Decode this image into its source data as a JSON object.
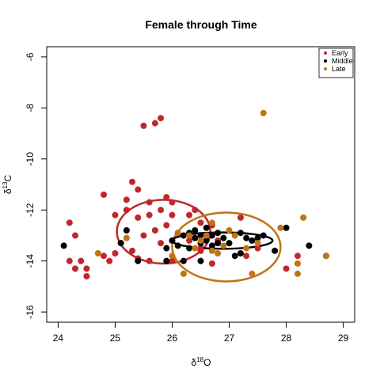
{
  "chart_data": {
    "type": "scatter",
    "title": "Female through Time",
    "xlabel": "δ18O",
    "xlabel_parts": {
      "delta": "δ",
      "sup": "18",
      "base": "O"
    },
    "ylabel": "δ13C",
    "ylabel_parts": {
      "delta": "δ",
      "sup": "13",
      "base": "C"
    },
    "xlim": [
      23.8,
      29.2
    ],
    "ylim": [
      -16.4,
      -5.6
    ],
    "xticks": [
      24,
      25,
      26,
      27,
      28,
      29
    ],
    "yticks": [
      -16,
      -14,
      -12,
      -10,
      -8,
      -6
    ],
    "grid": false,
    "legend_position": "top-right",
    "series": [
      {
        "name": "Early",
        "color": "#C0272D",
        "points": [
          [
            24.2,
            -12.5
          ],
          [
            24.3,
            -13.0
          ],
          [
            24.2,
            -14.0
          ],
          [
            24.3,
            -14.3
          ],
          [
            24.4,
            -14.0
          ],
          [
            24.5,
            -14.3
          ],
          [
            24.5,
            -14.6
          ],
          [
            24.8,
            -11.4
          ],
          [
            24.8,
            -13.8
          ],
          [
            24.9,
            -14.0
          ],
          [
            25.0,
            -12.2
          ],
          [
            25.0,
            -13.7
          ],
          [
            25.1,
            -13.3
          ],
          [
            25.2,
            -12.0
          ],
          [
            25.2,
            -11.6
          ],
          [
            25.3,
            -10.9
          ],
          [
            25.3,
            -13.6
          ],
          [
            25.4,
            -11.2
          ],
          [
            25.4,
            -12.3
          ],
          [
            25.5,
            -13.0
          ],
          [
            25.5,
            -8.7
          ],
          [
            25.7,
            -8.6
          ],
          [
            25.8,
            -8.4
          ],
          [
            25.6,
            -11.7
          ],
          [
            25.6,
            -12.2
          ],
          [
            25.7,
            -12.8
          ],
          [
            25.8,
            -12.0
          ],
          [
            25.9,
            -11.5
          ],
          [
            25.9,
            -12.6
          ],
          [
            26.0,
            -11.7
          ],
          [
            26.0,
            -12.2
          ],
          [
            26.1,
            -12.9
          ],
          [
            26.2,
            -13.0
          ],
          [
            26.3,
            -12.2
          ],
          [
            26.3,
            -13.2
          ],
          [
            26.4,
            -12.0
          ],
          [
            26.5,
            -12.5
          ],
          [
            26.5,
            -13.5
          ],
          [
            26.6,
            -13.0
          ],
          [
            26.7,
            -12.6
          ],
          [
            26.8,
            -13.2
          ],
          [
            26.7,
            -14.1
          ],
          [
            26.5,
            -13.6
          ],
          [
            27.2,
            -12.3
          ],
          [
            27.3,
            -13.8
          ],
          [
            27.5,
            -13.5
          ],
          [
            26.0,
            -14.0
          ],
          [
            25.8,
            -13.3
          ],
          [
            25.6,
            -14.0
          ],
          [
            25.4,
            -13.9
          ],
          [
            28.0,
            -14.3
          ],
          [
            28.2,
            -13.8
          ]
        ]
      },
      {
        "name": "Middle",
        "color": "#000000",
        "points": [
          [
            24.1,
            -13.4
          ],
          [
            25.1,
            -13.3
          ],
          [
            25.2,
            -12.8
          ],
          [
            25.4,
            -14.0
          ],
          [
            25.9,
            -13.5
          ],
          [
            25.9,
            -14.0
          ],
          [
            26.0,
            -13.2
          ],
          [
            26.1,
            -13.4
          ],
          [
            26.2,
            -13.0
          ],
          [
            26.3,
            -12.9
          ],
          [
            26.3,
            -13.5
          ],
          [
            26.4,
            -13.1
          ],
          [
            26.4,
            -12.8
          ],
          [
            26.5,
            -13.0
          ],
          [
            26.5,
            -13.3
          ],
          [
            26.6,
            -12.7
          ],
          [
            26.6,
            -13.2
          ],
          [
            26.7,
            -13.0
          ],
          [
            26.7,
            -13.4
          ],
          [
            26.8,
            -12.9
          ],
          [
            26.8,
            -13.3
          ],
          [
            26.9,
            -13.1
          ],
          [
            27.0,
            -13.3
          ],
          [
            27.1,
            -13.8
          ],
          [
            27.2,
            -13.7
          ],
          [
            27.2,
            -12.9
          ],
          [
            27.3,
            -13.1
          ],
          [
            27.4,
            -13.2
          ],
          [
            27.5,
            -13.1
          ],
          [
            27.6,
            -13.0
          ],
          [
            27.8,
            -13.6
          ],
          [
            28.0,
            -12.7
          ],
          [
            28.4,
            -13.4
          ],
          [
            28.7,
            -13.8
          ],
          [
            26.5,
            -14.0
          ],
          [
            26.2,
            -14.0
          ]
        ]
      },
      {
        "name": "Late",
        "color": "#C07515",
        "points": [
          [
            24.7,
            -13.7
          ],
          [
            25.2,
            -13.1
          ],
          [
            26.0,
            -13.8
          ],
          [
            26.1,
            -12.9
          ],
          [
            26.2,
            -14.5
          ],
          [
            26.4,
            -13.5
          ],
          [
            26.5,
            -13.2
          ],
          [
            26.6,
            -13.0
          ],
          [
            26.7,
            -13.6
          ],
          [
            26.7,
            -12.5
          ],
          [
            26.8,
            -13.7
          ],
          [
            26.9,
            -13.4
          ],
          [
            27.0,
            -12.8
          ],
          [
            27.1,
            -13.0
          ],
          [
            27.3,
            -13.5
          ],
          [
            27.4,
            -14.5
          ],
          [
            27.5,
            -13.3
          ],
          [
            27.6,
            -8.2
          ],
          [
            27.9,
            -12.7
          ],
          [
            28.2,
            -14.1
          ],
          [
            28.2,
            -14.5
          ],
          [
            28.3,
            -12.3
          ],
          [
            28.7,
            -13.8
          ],
          [
            26.3,
            -13.0
          ]
        ]
      }
    ],
    "ellipses": [
      {
        "series": "Early",
        "cx": 25.85,
        "cy": -12.85,
        "rx": 0.82,
        "ry": 1.25,
        "color": "#C0272D"
      },
      {
        "series": "Late",
        "cx": 26.95,
        "cy": -13.45,
        "rx": 0.95,
        "ry": 1.35,
        "color": "#C07515"
      },
      {
        "series": "Middle",
        "cx": 26.88,
        "cy": -13.2,
        "rx": 0.88,
        "ry": 0.32,
        "color": "#000000"
      }
    ]
  }
}
